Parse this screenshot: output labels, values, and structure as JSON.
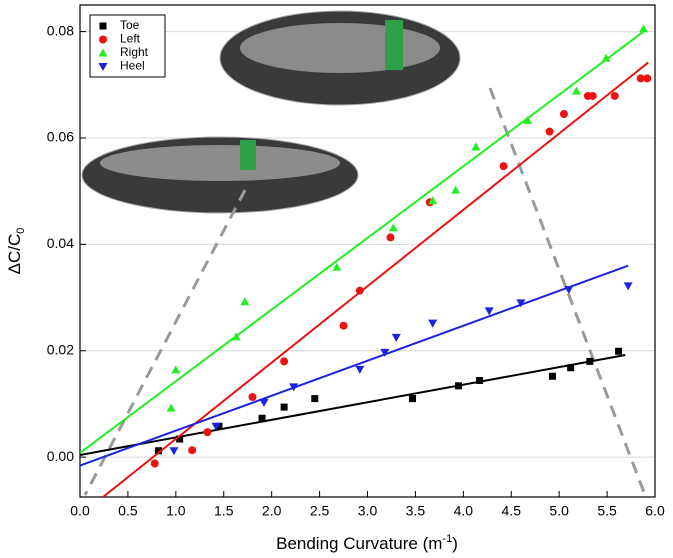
{
  "chart_data": {
    "type": "scatter",
    "x_label": {
      "text": "Bending Curvature (m",
      "sup": "-1",
      "end": ")"
    },
    "y_label": {
      "text": "ΔC/C",
      "sub": "0"
    },
    "xlim": [
      0,
      6.0
    ],
    "ylim": [
      -0.0075,
      0.085
    ],
    "xticks": [
      {
        "value": 0,
        "label": "0.0"
      },
      0.5,
      {
        "value": 1,
        "label": "1.0"
      },
      1.5,
      {
        "value": 2,
        "label": "2.0"
      },
      2.5,
      {
        "value": 3,
        "label": "3.0"
      },
      3.5,
      {
        "value": 4,
        "label": "4.0"
      },
      4.5,
      {
        "value": 5,
        "label": "5.0"
      },
      5.5,
      {
        "value": 6,
        "label": "6.0"
      }
    ],
    "yticks": [
      {
        "value": 0,
        "label": "0.00"
      },
      0.02,
      0.04,
      0.06,
      0.08
    ],
    "grid": true,
    "legend": "top-left",
    "series": [
      {
        "name": "Toe",
        "color": "#000000",
        "marker": "square",
        "x": [
          0.82,
          1.04,
          1.45,
          1.9,
          2.13,
          2.45,
          3.47,
          3.95,
          4.17,
          4.93,
          5.12,
          5.32,
          5.62
        ],
        "values": [
          0.0012,
          0.0034,
          0.0058,
          0.0073,
          0.0094,
          0.011,
          0.011,
          0.0134,
          0.0144,
          0.0152,
          0.0168,
          0.018,
          0.0199
        ],
        "fit": {
          "x": [
            0,
            5.69
          ],
          "values": [
            0.0004,
            0.0192
          ]
        }
      },
      {
        "name": "Left",
        "color": "#ee1111",
        "marker": "circle",
        "x": [
          0.78,
          1.17,
          1.33,
          1.8,
          2.13,
          2.75,
          2.92,
          3.24,
          3.65,
          4.42,
          4.9,
          5.05,
          5.3,
          5.35,
          5.58,
          5.85,
          5.92
        ],
        "values": [
          -0.0012,
          0.0013,
          0.0047,
          0.0113,
          0.018,
          0.0247,
          0.0313,
          0.0413,
          0.0479,
          0.0547,
          0.0612,
          0.0645,
          0.0679,
          0.0679,
          0.0679,
          0.0712,
          0.0712
        ],
        "fit": {
          "x": [
            0.24,
            5.93
          ],
          "values": [
            -0.0075,
            0.0742
          ]
        }
      },
      {
        "name": "Right",
        "color": "#22ee22",
        "marker": "triangle-up",
        "x": [
          0.95,
          1.0,
          1.63,
          1.72,
          2.68,
          3.27,
          3.68,
          3.92,
          4.13,
          4.67,
          5.18,
          5.49,
          5.88
        ],
        "values": [
          0.0092,
          0.0164,
          0.0226,
          0.0292,
          0.0357,
          0.0431,
          0.0482,
          0.0502,
          0.0583,
          0.0633,
          0.0688,
          0.075,
          0.0805
        ],
        "fit": {
          "x": [
            0,
            5.88
          ],
          "values": [
            0.0008,
            0.08
          ]
        }
      },
      {
        "name": "Heel",
        "color": "#1a22dd",
        "marker": "triangle-down",
        "x": [
          0.98,
          1.42,
          1.92,
          2.23,
          2.92,
          3.18,
          3.3,
          3.68,
          4.27,
          4.6,
          5.1,
          5.72
        ],
        "values": [
          0.0012,
          0.0058,
          0.0103,
          0.0132,
          0.0165,
          0.0197,
          0.0225,
          0.0252,
          0.0275,
          0.029,
          0.0315,
          0.0322
        ],
        "fit": {
          "x": [
            0,
            5.72
          ],
          "values": [
            -0.0016,
            0.036
          ]
        }
      }
    ]
  }
}
